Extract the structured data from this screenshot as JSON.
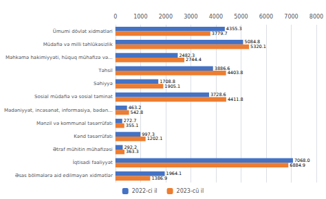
{
  "chart_data": {
    "type": "bar",
    "orientation": "horizontal",
    "categories": [
      "Ümumi dövlət xidmətləri",
      "Müdafiə və milli təhlükəsizlik",
      "Məhkəmə hakimiyyəti, hüquq mühafizə və...",
      "Təhsil",
      "Səhiyyə",
      "Sosial müdafiə və sosial təminat",
      "Mədəniyyət, incəsənət, informasiya, bədən...",
      "Mənzil və kommunal təsərrüfatı",
      "Kənd təsərrüfatı",
      "Ətraf mühitin mühafizəsi",
      "İqtisadi fəaliyyət",
      "Əsas bölmələrə aid edilməyən xidmətlər"
    ],
    "series": [
      {
        "name": "2022-ci il",
        "color": "#4472c4",
        "values": [
          4355.3,
          5084.8,
          2482.3,
          3886.6,
          1708.8,
          3728.6,
          463.2,
          272.7,
          997.3,
          292.2,
          7068.0,
          1964.1
        ],
        "value_labels": [
          "4355.3",
          "5084.8",
          "2482.3",
          "3886.6",
          "1708.8",
          "3728.6",
          "463.2",
          "272.7",
          "997.3",
          "292.2",
          "7068.0",
          "1964.1"
        ]
      },
      {
        "name": "2023-cü il",
        "color": "#ed7d31",
        "values": [
          3779.7,
          5320.1,
          2744.4,
          4403.8,
          1905.1,
          4411.8,
          542.8,
          355.1,
          1202.1,
          363.3,
          6884.9,
          1386.9
        ],
        "value_labels": [
          "3779.7",
          "5320.1",
          "2744.4",
          "4403.8",
          "1905.1",
          "4411.8",
          "542.8",
          "355.1",
          "1202.1",
          "363.3",
          "6884.9",
          "1386.9"
        ]
      }
    ],
    "xlim": [
      0,
      8000
    ],
    "xticks": [
      0,
      1000,
      2000,
      3000,
      4000,
      5000,
      6000,
      7000,
      8000
    ],
    "grid": true,
    "legend": "bottom",
    "data_labels": true
  }
}
